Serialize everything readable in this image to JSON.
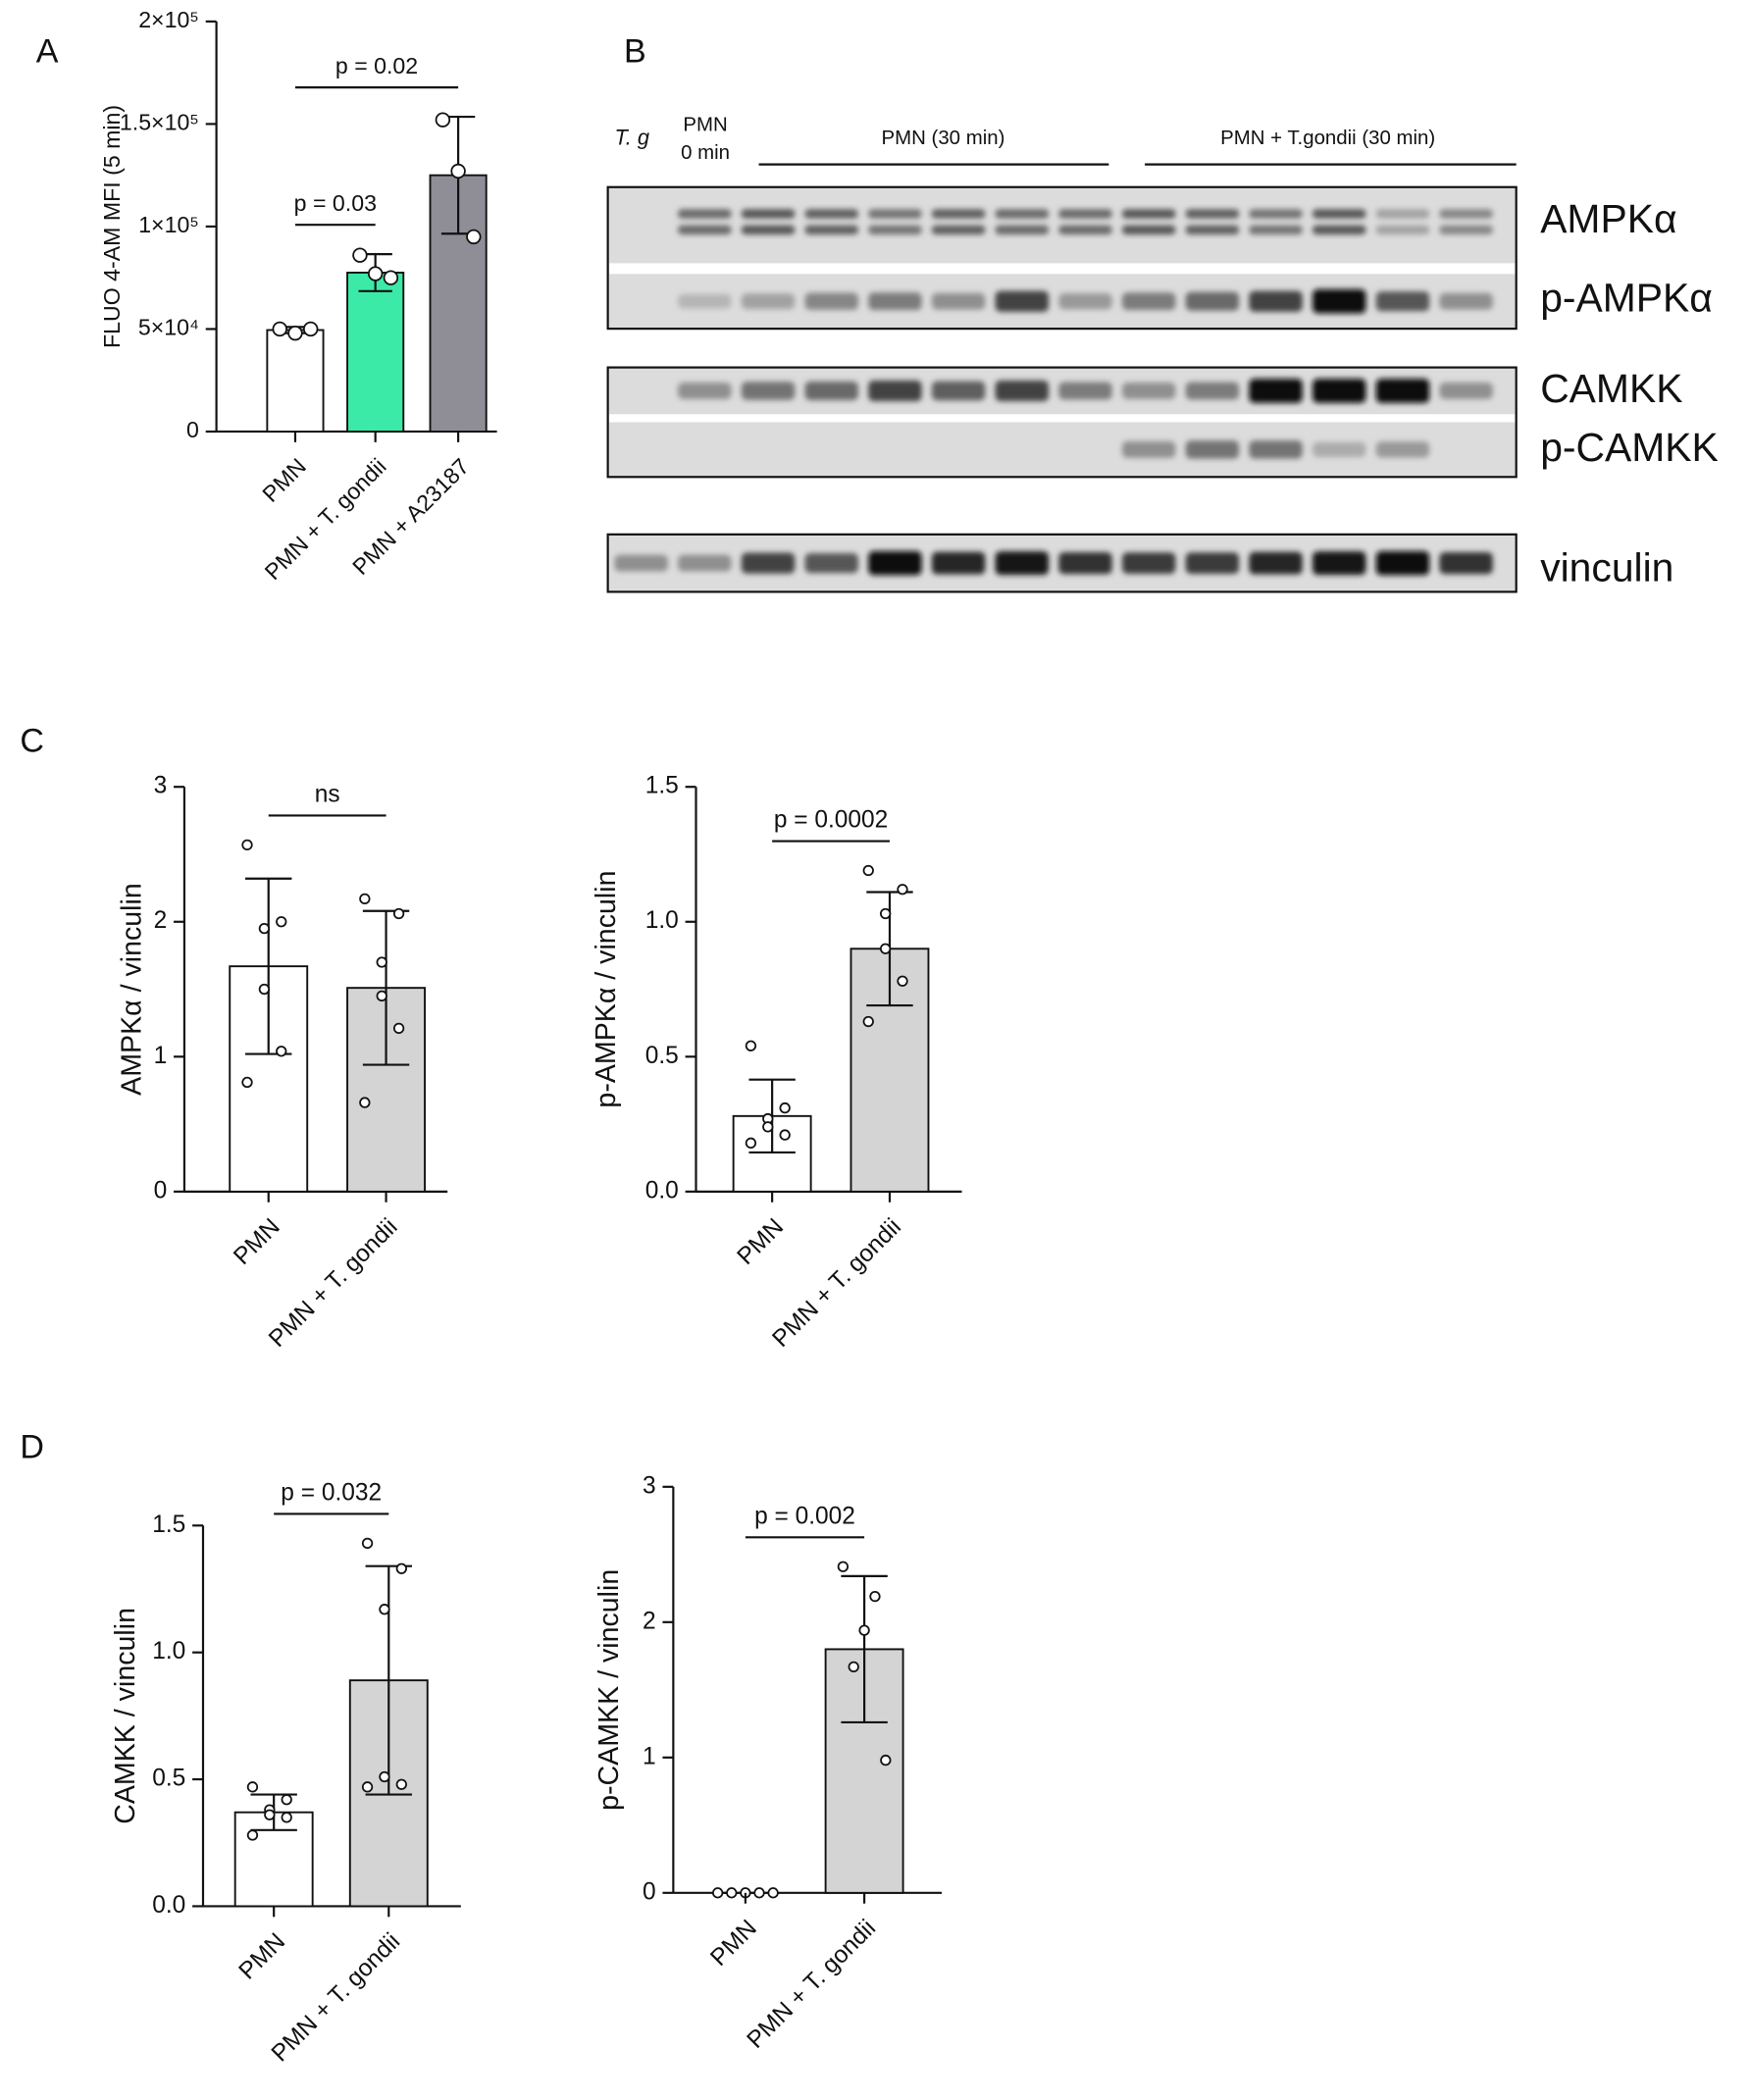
{
  "chart_data": [
    {
      "type": "bar",
      "panel": "A",
      "y_label": "FLUO 4-AM MFI (5 min)",
      "categories": [
        "PMN",
        "PMN + T. gondii",
        "PMN + A23187"
      ],
      "values": [
        49500,
        77500,
        125000
      ],
      "errors": [
        1500,
        9000,
        28500
      ],
      "points": [
        [
          50000,
          48000,
          50000
        ],
        [
          86000,
          77000,
          75000
        ],
        [
          152000,
          127000,
          95000
        ]
      ],
      "colors": [
        "#ffffff",
        "#3ceaa8",
        "#8f8e96"
      ],
      "ylim": [
        0,
        200000
      ],
      "yticks": [
        0,
        {
          "value": 50000,
          "label": "5×10⁴"
        },
        {
          "value": 100000,
          "label": "1×10⁵"
        },
        {
          "value": 150000,
          "label": "1.5×10⁵"
        },
        {
          "value": 200000,
          "label": "2×10⁵"
        }
      ],
      "comparisons": [
        {
          "groups": [
            0,
            1
          ],
          "label": "p = 0.03"
        },
        {
          "groups": [
            0,
            2
          ],
          "label": "p = 0.02"
        }
      ]
    },
    {
      "type": "bar",
      "panel": "C",
      "y_label": "AMPKα / vinculin",
      "categories": [
        "PMN",
        "PMN + T. gondii"
      ],
      "values": [
        1.67,
        1.51
      ],
      "errors": [
        0.65,
        0.57
      ],
      "points": [
        [
          2.57,
          2.0,
          1.95,
          1.5,
          1.04,
          0.81
        ],
        [
          2.17,
          2.06,
          1.7,
          1.45,
          1.21,
          0.66
        ]
      ],
      "colors": [
        "#ffffff",
        "#d4d4d4"
      ],
      "ylim": [
        0,
        3
      ],
      "yticks": [
        0,
        1,
        2,
        3
      ],
      "comparisons": [
        {
          "groups": [
            0,
            1
          ],
          "label": "ns"
        }
      ]
    },
    {
      "type": "bar",
      "y_label": "p-AMPKα / vinculin",
      "categories": [
        "PMN",
        "PMN + T. gondii"
      ],
      "values": [
        0.28,
        0.9
      ],
      "errors": [
        0.135,
        0.21
      ],
      "points": [
        [
          0.54,
          0.31,
          0.27,
          0.24,
          0.21,
          0.18
        ],
        [
          1.19,
          1.12,
          1.03,
          0.9,
          0.78,
          0.63
        ]
      ],
      "colors": [
        "#ffffff",
        "#d4d4d4"
      ],
      "ylim": [
        0,
        1.5
      ],
      "yticks": [
        {
          "value": 0,
          "label": "0.0"
        },
        0.5,
        {
          "value": 1,
          "label": "1.0"
        },
        1.5
      ],
      "comparisons": [
        {
          "groups": [
            0,
            1
          ],
          "label": "p = 0.0002"
        }
      ]
    },
    {
      "type": "bar",
      "panel": "D",
      "y_label": "CAMKK / vinculin",
      "categories": [
        "PMN",
        "PMN + T. gondii"
      ],
      "values": [
        0.37,
        0.89
      ],
      "errors": [
        0.07,
        0.45
      ],
      "points": [
        [
          0.47,
          0.42,
          0.38,
          0.36,
          0.35,
          0.28
        ],
        [
          1.43,
          1.33,
          1.17,
          0.51,
          0.48,
          0.47
        ]
      ],
      "colors": [
        "#ffffff",
        "#d4d4d4"
      ],
      "ylim": [
        0,
        1.5
      ],
      "yticks": [
        {
          "value": 0,
          "label": "0.0"
        },
        0.5,
        {
          "value": 1,
          "label": "1.0"
        },
        1.5
      ],
      "comparisons": [
        {
          "groups": [
            0,
            1
          ],
          "label": "p = 0.032"
        }
      ]
    },
    {
      "type": "bar",
      "y_label": "p-CAMKK / vinculin",
      "categories": [
        "PMN",
        "PMN + T. gondii"
      ],
      "values": [
        0,
        1.8
      ],
      "errors": [
        0,
        0.54
      ],
      "points": [
        [
          0,
          0,
          0,
          0,
          0
        ],
        [
          2.41,
          2.19,
          1.94,
          1.67,
          0.98
        ]
      ],
      "colors": [
        "#ffffff",
        "#d4d4d4"
      ],
      "ylim": [
        0,
        3
      ],
      "yticks": [
        0,
        1,
        2,
        3
      ],
      "comparisons": [
        {
          "groups": [
            0,
            1
          ],
          "label": "p = 0.002"
        }
      ]
    }
  ],
  "blot": {
    "panel": "B",
    "lane_label": "T. g",
    "baseline": [
      "PMN",
      "0 min"
    ],
    "groups": [
      "PMN (30 min)",
      "PMN + T.gondii (30 min)"
    ],
    "proteins": [
      "AMPKα",
      "p-AMPKα",
      "CAMKK",
      "p-CAMKK",
      "vinculin"
    ]
  }
}
